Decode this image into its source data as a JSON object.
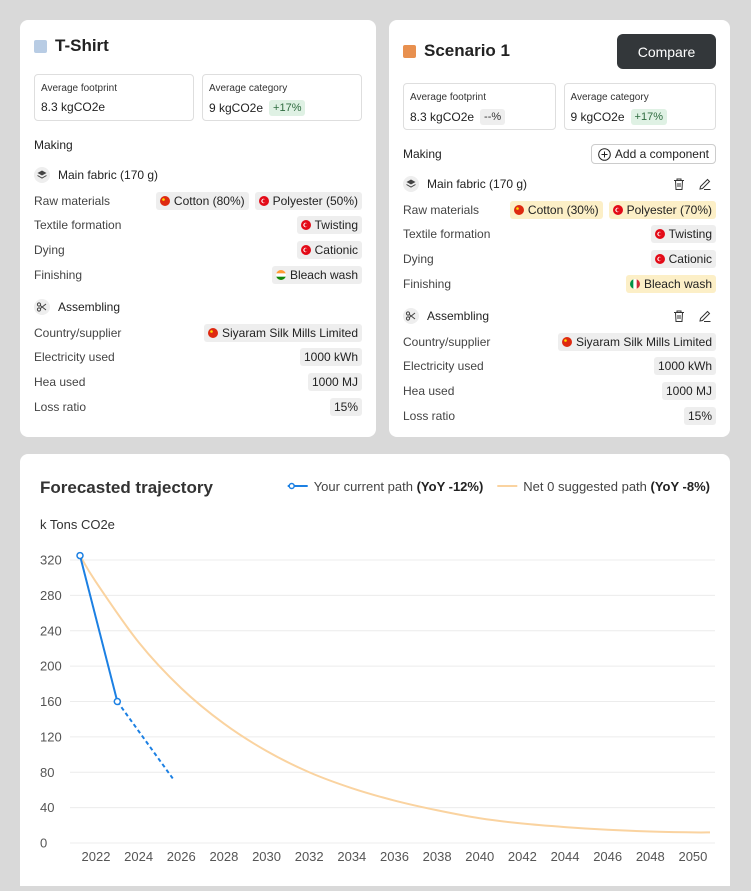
{
  "cards": [
    {
      "title": "T-Shirt",
      "color": "#b8cce4",
      "metrics": [
        {
          "label": "Average footprint",
          "value": "8.3 kgCO2e"
        },
        {
          "label": "Average category",
          "value": "9 kgCO2e",
          "badge": "+17%"
        }
      ],
      "section": "Making",
      "groups": [
        {
          "title": "Main fabric (170 g)",
          "icon": "layers",
          "rows": [
            {
              "label": "Raw materials",
              "tags": [
                {
                  "text": "Cotton (80%)",
                  "flag": "cn"
                },
                {
                  "text": "Polyester (50%)",
                  "flag": "tr"
                }
              ]
            },
            {
              "label": "Textile formation",
              "tags": [
                {
                  "text": "Twisting",
                  "flag": "tr"
                }
              ]
            },
            {
              "label": "Dying",
              "tags": [
                {
                  "text": "Cationic",
                  "flag": "tr"
                }
              ]
            },
            {
              "label": "Finishing",
              "tags": [
                {
                  "text": "Bleach wash",
                  "flag": "in"
                }
              ]
            }
          ]
        },
        {
          "title": "Assembling",
          "icon": "scissors",
          "rows": [
            {
              "label": "Country/supplier",
              "tags": [
                {
                  "text": "Siyaram Silk Mills Limited",
                  "flag": "cn"
                }
              ]
            },
            {
              "label": "Electricity used",
              "tags": [
                {
                  "text": "1000 kWh"
                }
              ]
            },
            {
              "label": "Hea used",
              "tags": [
                {
                  "text": "1000 MJ"
                }
              ]
            },
            {
              "label": "Loss ratio",
              "tags": [
                {
                  "text": "15%"
                }
              ]
            }
          ]
        }
      ]
    },
    {
      "title": "Scenario 1",
      "color": "#e8904f",
      "button": "Compare",
      "metrics": [
        {
          "label": "Average footprint",
          "value": "8.3 kgCO2e",
          "badge": "--%"
        },
        {
          "label": "Average category",
          "value": "9 kgCO2e",
          "badge": "+17%"
        }
      ],
      "section": "Making",
      "section_button": "Add a component",
      "groups": [
        {
          "title": "Main fabric (170 g)",
          "icon": "layers",
          "rows": [
            {
              "label": "Raw materials",
              "tags": [
                {
                  "text": "Cotton (30%)",
                  "flag": "cn",
                  "highlight": true
                },
                {
                  "text": "Polyester (70%)",
                  "flag": "tr",
                  "highlight": true
                }
              ]
            },
            {
              "label": "Textile formation",
              "tags": [
                {
                  "text": "Twisting",
                  "flag": "tr"
                }
              ]
            },
            {
              "label": "Dying",
              "tags": [
                {
                  "text": "Cationic",
                  "flag": "tr"
                }
              ]
            },
            {
              "label": "Finishing",
              "tags": [
                {
                  "text": "Bleach wash",
                  "flag": "it",
                  "highlight": true
                }
              ]
            }
          ]
        },
        {
          "title": "Assembling",
          "icon": "scissors",
          "rows": [
            {
              "label": "Country/supplier",
              "tags": [
                {
                  "text": "Siyaram Silk Mills Limited",
                  "flag": "cn"
                }
              ]
            },
            {
              "label": "Electricity used",
              "tags": [
                {
                  "text": "1000 kWh"
                }
              ]
            },
            {
              "label": "Hea used",
              "tags": [
                {
                  "text": "1000 MJ"
                }
              ]
            },
            {
              "label": "Loss ratio",
              "tags": [
                {
                  "text": "15%"
                }
              ]
            }
          ]
        }
      ]
    }
  ],
  "chart_data": {
    "type": "line",
    "title": "Forecasted trajectory",
    "y_label": "k Tons CO2e",
    "series": [
      {
        "name": "Your current path",
        "note": "(YoY -12%)",
        "color": "#1c80e3",
        "x": [
          2021.25,
          2023
        ],
        "values": [
          325,
          160
        ],
        "projection": {
          "x": [
            2023,
            2025.6
          ],
          "values": [
            160,
            73
          ]
        }
      },
      {
        "name": "Net 0 suggested path",
        "note": "(YoY -8%)",
        "color": "#fad3a0",
        "x": [
          2021.25,
          2022,
          2024,
          2026,
          2028,
          2030,
          2032,
          2034,
          2036,
          2038,
          2040,
          2042,
          2044,
          2046,
          2048,
          2050,
          2050.8
        ],
        "values": [
          325,
          295,
          227,
          175,
          135,
          104,
          80,
          62,
          48,
          37,
          28,
          22,
          18,
          15,
          13,
          12,
          12
        ]
      }
    ],
    "xlim": [
      2021.25,
      2050.8
    ],
    "xticks": [
      2022,
      2024,
      2026,
      2028,
      2030,
      2032,
      2034,
      2036,
      2038,
      2040,
      2042,
      2044,
      2046,
      2048,
      2050
    ],
    "ylim": [
      0,
      320
    ],
    "yticks": [
      0,
      40,
      80,
      120,
      160,
      200,
      240,
      280,
      320
    ],
    "grid": true
  }
}
